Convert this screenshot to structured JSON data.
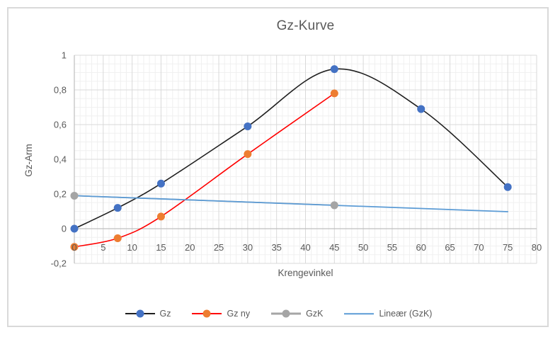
{
  "chart_data": {
    "type": "line",
    "title": "Gz-Kurve",
    "xlabel": "Krengevinkel",
    "ylabel": "Gz-Arm",
    "xlim": [
      0,
      80
    ],
    "ylim": [
      -0.2,
      1.0
    ],
    "x_ticks": [
      "0",
      "5",
      "10",
      "15",
      "20",
      "25",
      "30",
      "35",
      "40",
      "45",
      "50",
      "55",
      "60",
      "65",
      "70",
      "75",
      "80"
    ],
    "y_ticks": [
      "1",
      "0,8",
      "0,6",
      "0,4",
      "0,2",
      "0",
      "-0,2"
    ],
    "grid": {
      "major_x_step": 5,
      "minor_x_step": 1,
      "major_y_step": 0.2,
      "minor_y_step": 0.05
    },
    "legend_position": "bottom",
    "colors": {
      "major_grid": "#d9d9d9",
      "minor_grid": "#f0f0f0",
      "axis_line": "#bfbfbf",
      "text": "#595959",
      "chart_border": "#d9d9d9"
    },
    "series": [
      {
        "name": "Gz",
        "x": [
          0,
          7.5,
          15,
          30,
          45,
          60,
          75
        ],
        "y": [
          0,
          0.12,
          0.26,
          0.59,
          0.92,
          0.69,
          0.24
        ],
        "line_color": "#1f1f1f",
        "marker_color": "#4472c4",
        "smooth": true,
        "marker": true,
        "line_width": 1.6
      },
      {
        "name": "Gz ny",
        "x": [
          0,
          7.5,
          15,
          30,
          45
        ],
        "y": [
          -0.105,
          -0.055,
          0.07,
          0.43,
          0.78
        ],
        "line_color": "#ff0000",
        "marker_color": "#ed7d31",
        "smooth": true,
        "marker": true,
        "line_width": 1.6
      },
      {
        "name": "GzK",
        "x": [
          0,
          45
        ],
        "y": [
          0.19,
          0.135
        ],
        "line_color": "#a5a5a5",
        "marker_color": "#a5a5a5",
        "smooth": false,
        "marker": true,
        "line_width": 1.75
      },
      {
        "name": "Lineær (GzK)",
        "x": [
          0,
          75
        ],
        "y": [
          0.19,
          0.098
        ],
        "line_color": "#5b9bd5",
        "marker_color": "#5b9bd5",
        "smooth": false,
        "marker": false,
        "line_width": 1.75,
        "trendline": true
      }
    ]
  }
}
